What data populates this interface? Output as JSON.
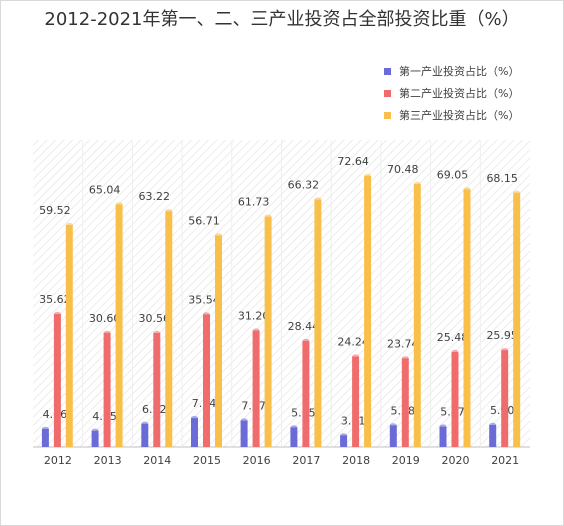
{
  "chart_data": {
    "type": "bar",
    "title": "2012-2021年第一、二、三产业投资占全部投资比重（%）",
    "categories": [
      "2012",
      "2013",
      "2014",
      "2015",
      "2016",
      "2017",
      "2018",
      "2019",
      "2020",
      "2021"
    ],
    "series": [
      {
        "name": "第一产业投资占比（%）",
        "color": "#6b6bd8",
        "values": [
          4.86,
          4.35,
          6.22,
          7.74,
          7.07,
          5.25,
          3.11,
          5.78,
          5.47,
          5.9
        ],
        "labels": [
          "4.86",
          "4.35",
          "6.22",
          "7.74",
          "7.07",
          "5.25",
          "3.11",
          "5.78",
          "5.47",
          "5.90"
        ]
      },
      {
        "name": "第二产业投资占比（%）",
        "color": "#f06b6b",
        "values": [
          35.62,
          30.6,
          30.56,
          35.54,
          31.2,
          28.44,
          24.24,
          23.74,
          25.48,
          25.95
        ],
        "labels": [
          "35.62",
          "30.60",
          "30.56",
          "35.54",
          "31.20",
          "28.44",
          "24.24",
          "23.74",
          "25.48",
          "25.95"
        ]
      },
      {
        "name": "第三产业投资占比（%）",
        "color": "#f8c04a",
        "values": [
          59.52,
          65.04,
          63.22,
          56.71,
          61.73,
          66.32,
          72.64,
          70.48,
          69.05,
          68.15
        ],
        "labels": [
          "59.52",
          "65.04",
          "63.22",
          "56.71",
          "61.73",
          "66.32",
          "72.64",
          "70.48",
          "69.05",
          "68.15"
        ]
      }
    ],
    "ylim": [
      0,
      80
    ],
    "grid": false,
    "legend_position": "top-right",
    "background": "hatched"
  }
}
